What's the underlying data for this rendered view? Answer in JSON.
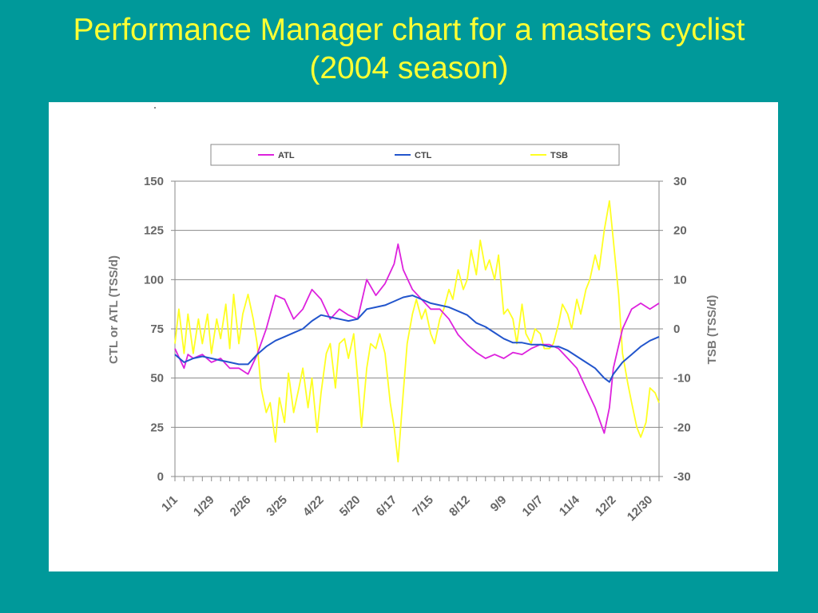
{
  "slide": {
    "title_line1": "Performance Manager chart for a masters cyclist",
    "title_line2": "(2004 season)"
  },
  "colors": {
    "background": "#00999a",
    "title": "#ffff33",
    "atl": "#dd22dd",
    "ctl": "#2255cc",
    "tsb": "#ffff22"
  },
  "chart_data": {
    "type": "line",
    "title": "",
    "legend": {
      "position": "top",
      "entries": [
        "ATL",
        "CTL",
        "TSB"
      ]
    },
    "x_tick_labels": [
      "1/1",
      "1/29",
      "2/26",
      "3/25",
      "4/22",
      "5/20",
      "6/17",
      "7/15",
      "8/12",
      "9/9",
      "10/7",
      "11/4",
      "12/2",
      "12/30"
    ],
    "x_range_days": [
      0,
      371
    ],
    "left_axis": {
      "label": "CTL or ATL (TSS/d)",
      "range": [
        0,
        150
      ],
      "ticks": [
        "0",
        "25",
        "50",
        "75",
        "100",
        "125",
        "150"
      ]
    },
    "right_axis": {
      "label": "TSB (TSS/d)",
      "range": [
        -30,
        30
      ],
      "ticks": [
        "-30",
        "-20",
        "-10",
        "0",
        "10",
        "20",
        "30"
      ]
    },
    "grid": "horizontal",
    "series": [
      {
        "name": "ATL",
        "axis": "left",
        "color": "#dd22dd",
        "points": [
          [
            0,
            65
          ],
          [
            7,
            55
          ],
          [
            10,
            62
          ],
          [
            14,
            60
          ],
          [
            21,
            62
          ],
          [
            28,
            58
          ],
          [
            35,
            60
          ],
          [
            42,
            55
          ],
          [
            49,
            55
          ],
          [
            56,
            52
          ],
          [
            63,
            62
          ],
          [
            70,
            75
          ],
          [
            77,
            92
          ],
          [
            84,
            90
          ],
          [
            91,
            80
          ],
          [
            98,
            85
          ],
          [
            105,
            95
          ],
          [
            112,
            90
          ],
          [
            119,
            80
          ],
          [
            126,
            85
          ],
          [
            133,
            82
          ],
          [
            140,
            80
          ],
          [
            147,
            100
          ],
          [
            154,
            92
          ],
          [
            161,
            98
          ],
          [
            168,
            108
          ],
          [
            171,
            118
          ],
          [
            175,
            105
          ],
          [
            182,
            95
          ],
          [
            189,
            90
          ],
          [
            196,
            85
          ],
          [
            203,
            85
          ],
          [
            210,
            80
          ],
          [
            217,
            72
          ],
          [
            224,
            67
          ],
          [
            231,
            63
          ],
          [
            238,
            60
          ],
          [
            245,
            62
          ],
          [
            252,
            60
          ],
          [
            259,
            63
          ],
          [
            266,
            62
          ],
          [
            273,
            65
          ],
          [
            280,
            67
          ],
          [
            287,
            67
          ],
          [
            294,
            65
          ],
          [
            301,
            60
          ],
          [
            308,
            55
          ],
          [
            315,
            45
          ],
          [
            322,
            35
          ],
          [
            329,
            22
          ],
          [
            333,
            35
          ],
          [
            336,
            55
          ],
          [
            343,
            75
          ],
          [
            350,
            85
          ],
          [
            357,
            88
          ],
          [
            364,
            85
          ],
          [
            371,
            88
          ]
        ]
      },
      {
        "name": "CTL",
        "axis": "left",
        "color": "#2255cc",
        "points": [
          [
            0,
            62
          ],
          [
            7,
            58
          ],
          [
            14,
            60
          ],
          [
            21,
            61
          ],
          [
            28,
            60
          ],
          [
            35,
            59
          ],
          [
            42,
            58
          ],
          [
            49,
            57
          ],
          [
            56,
            57
          ],
          [
            63,
            62
          ],
          [
            70,
            66
          ],
          [
            77,
            69
          ],
          [
            84,
            71
          ],
          [
            91,
            73
          ],
          [
            98,
            75
          ],
          [
            105,
            79
          ],
          [
            112,
            82
          ],
          [
            119,
            81
          ],
          [
            126,
            80
          ],
          [
            133,
            79
          ],
          [
            140,
            80
          ],
          [
            147,
            85
          ],
          [
            154,
            86
          ],
          [
            161,
            87
          ],
          [
            168,
            89
          ],
          [
            175,
            91
          ],
          [
            182,
            92
          ],
          [
            189,
            90
          ],
          [
            196,
            88
          ],
          [
            203,
            87
          ],
          [
            210,
            86
          ],
          [
            217,
            84
          ],
          [
            224,
            82
          ],
          [
            231,
            78
          ],
          [
            238,
            76
          ],
          [
            245,
            73
          ],
          [
            252,
            70
          ],
          [
            259,
            68
          ],
          [
            266,
            68
          ],
          [
            273,
            67
          ],
          [
            280,
            67
          ],
          [
            287,
            66
          ],
          [
            294,
            66
          ],
          [
            301,
            64
          ],
          [
            308,
            61
          ],
          [
            315,
            58
          ],
          [
            322,
            55
          ],
          [
            329,
            50
          ],
          [
            333,
            48
          ],
          [
            336,
            52
          ],
          [
            343,
            58
          ],
          [
            350,
            62
          ],
          [
            357,
            66
          ],
          [
            364,
            69
          ],
          [
            371,
            71
          ]
        ]
      },
      {
        "name": "TSB",
        "axis": "right",
        "color": "#ffff22",
        "points": [
          [
            0,
            -3
          ],
          [
            3,
            4
          ],
          [
            7,
            -5
          ],
          [
            10,
            3
          ],
          [
            14,
            -5
          ],
          [
            18,
            2
          ],
          [
            21,
            -3
          ],
          [
            25,
            3
          ],
          [
            28,
            -5
          ],
          [
            32,
            2
          ],
          [
            35,
            -2
          ],
          [
            39,
            5
          ],
          [
            42,
            -4
          ],
          [
            45,
            7
          ],
          [
            49,
            -3
          ],
          [
            52,
            3
          ],
          [
            56,
            7
          ],
          [
            60,
            2
          ],
          [
            63,
            -3
          ],
          [
            66,
            -12
          ],
          [
            70,
            -17
          ],
          [
            73,
            -15
          ],
          [
            77,
            -23
          ],
          [
            80,
            -14
          ],
          [
            84,
            -19
          ],
          [
            87,
            -9
          ],
          [
            91,
            -17
          ],
          [
            95,
            -12
          ],
          [
            98,
            -8
          ],
          [
            102,
            -16
          ],
          [
            105,
            -10
          ],
          [
            109,
            -21
          ],
          [
            112,
            -13
          ],
          [
            116,
            -5
          ],
          [
            119,
            -3
          ],
          [
            123,
            -12
          ],
          [
            126,
            -3
          ],
          [
            130,
            -2
          ],
          [
            133,
            -6
          ],
          [
            137,
            -1
          ],
          [
            140,
            -10
          ],
          [
            143,
            -20
          ],
          [
            147,
            -8
          ],
          [
            150,
            -3
          ],
          [
            154,
            -4
          ],
          [
            157,
            -1
          ],
          [
            161,
            -5
          ],
          [
            165,
            -15
          ],
          [
            168,
            -20
          ],
          [
            171,
            -27
          ],
          [
            175,
            -13
          ],
          [
            178,
            -3
          ],
          [
            182,
            3
          ],
          [
            185,
            6
          ],
          [
            189,
            2
          ],
          [
            192,
            4
          ],
          [
            196,
            -1
          ],
          [
            199,
            -3
          ],
          [
            203,
            2
          ],
          [
            206,
            4
          ],
          [
            210,
            8
          ],
          [
            213,
            6
          ],
          [
            217,
            12
          ],
          [
            221,
            8
          ],
          [
            224,
            10
          ],
          [
            227,
            16
          ],
          [
            231,
            11
          ],
          [
            234,
            18
          ],
          [
            238,
            12
          ],
          [
            241,
            14
          ],
          [
            245,
            10
          ],
          [
            248,
            15
          ],
          [
            252,
            3
          ],
          [
            255,
            4
          ],
          [
            259,
            2
          ],
          [
            262,
            -3
          ],
          [
            266,
            5
          ],
          [
            269,
            -1
          ],
          [
            273,
            -3
          ],
          [
            276,
            0
          ],
          [
            280,
            -1
          ],
          [
            283,
            -4
          ],
          [
            287,
            -4
          ],
          [
            290,
            -3
          ],
          [
            294,
            1
          ],
          [
            297,
            5
          ],
          [
            301,
            3
          ],
          [
            304,
            0
          ],
          [
            308,
            6
          ],
          [
            311,
            3
          ],
          [
            315,
            8
          ],
          [
            318,
            10
          ],
          [
            322,
            15
          ],
          [
            325,
            12
          ],
          [
            329,
            20
          ],
          [
            333,
            26
          ],
          [
            336,
            18
          ],
          [
            340,
            7
          ],
          [
            343,
            -5
          ],
          [
            347,
            -11
          ],
          [
            350,
            -15
          ],
          [
            354,
            -20
          ],
          [
            357,
            -22
          ],
          [
            361,
            -19
          ],
          [
            364,
            -12
          ],
          [
            368,
            -13
          ],
          [
            371,
            -15
          ]
        ]
      }
    ]
  }
}
